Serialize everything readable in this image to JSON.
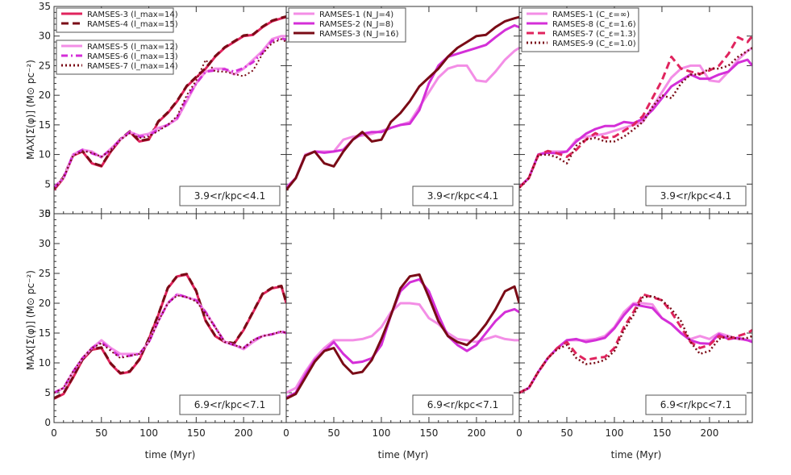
{
  "figure": {
    "ylabel": "MAX[Σ(φ)]  (M⊙ pc⁻²)",
    "xlabel": "time (Myr)",
    "ylim": [
      0,
      35
    ],
    "yticks": [
      0,
      5,
      10,
      15,
      20,
      25,
      30,
      35
    ],
    "xlim": [
      0,
      245
    ],
    "xticks": [
      0,
      50,
      100,
      150,
      200
    ]
  },
  "chart_data": [
    {
      "type": "line",
      "panel": "top-left",
      "region_label": "3.9<r/kpc<4.1",
      "legend_top": [
        {
          "name": "RAMSES-3 (l_max=14)",
          "color": "#e0245e",
          "dash": "solid"
        },
        {
          "name": "RAMSES-4 (l_max=15)",
          "color": "#7a0b16",
          "dash": "dashed"
        }
      ],
      "legend_bottom": [
        {
          "name": "RAMSES-5 (l_max=12)",
          "color": "#f38ee6",
          "dash": "solid"
        },
        {
          "name": "RAMSES-6 (l_max=13)",
          "color": "#d42fd8",
          "dash": "dashdot"
        },
        {
          "name": "RAMSES-7 (l_max=14)",
          "color": "#7a0b16",
          "dash": "dotted"
        }
      ],
      "x": [
        0,
        10,
        20,
        30,
        40,
        50,
        60,
        70,
        80,
        90,
        100,
        110,
        120,
        130,
        140,
        150,
        160,
        170,
        180,
        190,
        200,
        210,
        220,
        230,
        240,
        245
      ],
      "series": [
        {
          "name": "RAMSES-3 (l_max=14)",
          "color": "#e0245e",
          "dash": "solid",
          "width": 3,
          "values": [
            4,
            6,
            9.8,
            10.5,
            8.5,
            8,
            10.5,
            12.5,
            13.8,
            12.2,
            12.5,
            15.5,
            17,
            19,
            21.5,
            23,
            24.5,
            26.5,
            28,
            29,
            30,
            30.2,
            31.5,
            32.5,
            33,
            33.2
          ]
        },
        {
          "name": "RAMSES-4 (l_max=15)",
          "color": "#7a0b16",
          "dash": "dashed",
          "width": 3,
          "values": [
            4.2,
            6.2,
            9.9,
            10.6,
            8.6,
            8.1,
            10.6,
            12.6,
            13.9,
            12.3,
            12.6,
            15.6,
            17.1,
            19.1,
            21.6,
            23.1,
            24.6,
            26.6,
            28.1,
            29.1,
            30.1,
            30.3,
            31.6,
            32.6,
            33.1,
            33.3
          ]
        },
        {
          "name": "RAMSES-5 (l_max=12)",
          "color": "#f38ee6",
          "dash": "solid",
          "width": 3,
          "values": [
            4.5,
            6,
            10,
            10.8,
            10.5,
            9.5,
            11,
            12.5,
            13.8,
            13.2,
            13.5,
            14.5,
            15,
            16,
            19,
            22,
            24,
            24.5,
            24.5,
            23.5,
            24.5,
            26,
            27.5,
            29.5,
            30,
            30
          ]
        },
        {
          "name": "RAMSES-6 (l_max=13)",
          "color": "#d42fd8",
          "dash": "dashdot",
          "width": 3,
          "values": [
            4.4,
            6,
            9.9,
            10.8,
            10.2,
            9.6,
            10.8,
            12.6,
            13.8,
            13,
            13.2,
            14.2,
            15,
            16.2,
            19.5,
            22,
            24,
            24.2,
            24.4,
            24,
            24.6,
            25.6,
            27.2,
            29.2,
            29.6,
            29.4
          ]
        },
        {
          "name": "RAMSES-7 (l_max=14)",
          "color": "#7a0b16",
          "dash": "dotted",
          "width": 2,
          "values": [
            4.3,
            6,
            9.8,
            10.6,
            10.3,
            9.6,
            10.8,
            12.5,
            13.6,
            12.8,
            13,
            14,
            15,
            16.5,
            20,
            22.5,
            26,
            24,
            24,
            23.6,
            23.2,
            24.2,
            27,
            28.8,
            29.5,
            29
          ]
        }
      ]
    },
    {
      "type": "line",
      "panel": "top-middle",
      "region_label": "3.9<r/kpc<4.1",
      "legend_top": [
        {
          "name": "RAMSES-1 (N_J=4)",
          "color": "#f38ee6",
          "dash": "solid"
        },
        {
          "name": "RAMSES-2 (N_J=8)",
          "color": "#d42fd8",
          "dash": "solid"
        },
        {
          "name": "RAMSES-3 (N_J=16)",
          "color": "#7a0b16",
          "dash": "solid"
        }
      ],
      "legend_bottom": [],
      "x": [
        0,
        10,
        20,
        30,
        40,
        50,
        60,
        70,
        80,
        90,
        100,
        110,
        120,
        130,
        140,
        150,
        160,
        170,
        180,
        190,
        200,
        210,
        220,
        230,
        240,
        245
      ],
      "series": [
        {
          "name": "RAMSES-1 (N_J=4)",
          "color": "#f38ee6",
          "dash": "solid",
          "width": 3,
          "values": [
            4.5,
            6,
            10,
            10.5,
            10.5,
            10.5,
            12.5,
            13,
            13.2,
            13.5,
            14,
            14.5,
            15,
            15.5,
            18,
            20.5,
            23,
            24.5,
            25,
            25,
            22.5,
            22.3,
            24,
            26,
            27.5,
            28
          ]
        },
        {
          "name": "RAMSES-2 (N_J=8)",
          "color": "#d42fd8",
          "dash": "solid",
          "width": 3,
          "values": [
            4.3,
            6,
            9.8,
            10.5,
            10.3,
            10.5,
            10.8,
            12.5,
            13.5,
            13.8,
            13.8,
            14.5,
            15,
            15.2,
            17.5,
            22,
            25,
            26.5,
            27,
            27.5,
            28,
            28.5,
            29.8,
            31,
            31.8,
            31.5
          ]
        },
        {
          "name": "RAMSES-3 (N_J=16)",
          "color": "#7a0b16",
          "dash": "solid",
          "width": 3,
          "values": [
            4,
            6,
            9.8,
            10.5,
            8.5,
            8,
            10.5,
            12.5,
            13.8,
            12.2,
            12.5,
            15.5,
            17,
            19,
            21.5,
            23,
            24.5,
            26.5,
            28,
            29,
            30,
            30.2,
            31.5,
            32.5,
            33,
            33.2
          ]
        }
      ]
    },
    {
      "type": "line",
      "panel": "top-right",
      "region_label": "3.9<r/kpc<4.1",
      "legend_top": [
        {
          "name": "RAMSES-1 (C_ε=∞)",
          "color": "#f38ee6",
          "dash": "solid"
        },
        {
          "name": "RAMSES-8 (C_ε=1.6)",
          "color": "#d42fd8",
          "dash": "solid"
        },
        {
          "name": "RAMSES-7 (C_ε=1.3)",
          "color": "#e0245e",
          "dash": "dashed"
        },
        {
          "name": "RAMSES-9 (C_ε=1.0)",
          "color": "#7a0b16",
          "dash": "dotted"
        }
      ],
      "legend_bottom": [],
      "x": [
        0,
        10,
        20,
        30,
        40,
        50,
        60,
        70,
        80,
        90,
        100,
        110,
        120,
        130,
        140,
        150,
        160,
        170,
        180,
        190,
        200,
        210,
        220,
        230,
        240,
        245
      ],
      "series": [
        {
          "name": "RAMSES-1 (C_ε=∞)",
          "color": "#f38ee6",
          "dash": "solid",
          "width": 3,
          "values": [
            4.5,
            6,
            10,
            10.5,
            10.5,
            10.5,
            12.5,
            13,
            13.2,
            13.5,
            14,
            14.5,
            15,
            15.5,
            18,
            20.5,
            23,
            24.5,
            25,
            25,
            22.5,
            22.3,
            24,
            26,
            27.5,
            28
          ]
        },
        {
          "name": "RAMSES-8 (C_ε=1.6)",
          "color": "#d42fd8",
          "dash": "solid",
          "width": 3,
          "values": [
            4.5,
            6,
            10,
            10.3,
            10.2,
            10.5,
            12.2,
            13.5,
            14.3,
            14.8,
            14.8,
            15.5,
            15.3,
            16,
            17.5,
            19.5,
            21.5,
            22.5,
            23.5,
            22.8,
            22.8,
            23.5,
            24,
            25.5,
            26,
            25
          ]
        },
        {
          "name": "RAMSES-7 (C_ε=1.3)",
          "color": "#e0245e",
          "dash": "dashed",
          "width": 3,
          "values": [
            4.4,
            6,
            9.9,
            10.6,
            10.2,
            9.6,
            10.8,
            12.5,
            13.6,
            12.8,
            13,
            14,
            15,
            16.5,
            19.5,
            22.5,
            26.5,
            24.5,
            24,
            23.6,
            24.2,
            25,
            27,
            29.8,
            29,
            30
          ]
        },
        {
          "name": "RAMSES-9 (C_ε=1.0)",
          "color": "#7a0b16",
          "dash": "dotted",
          "width": 2.5,
          "values": [
            4.4,
            6,
            9.9,
            10,
            9.5,
            8.5,
            11.5,
            12.5,
            12.8,
            12.2,
            12.2,
            13,
            14.2,
            15.5,
            18,
            20,
            19.5,
            22,
            23.5,
            23.5,
            24.5,
            24.5,
            25,
            26.5,
            27.5,
            28
          ]
        }
      ]
    },
    {
      "type": "line",
      "panel": "bottom-left",
      "region_label": "6.9<r/kpc<7.1",
      "legend_top": [],
      "legend_bottom": [],
      "x": [
        0,
        10,
        20,
        30,
        40,
        50,
        60,
        70,
        80,
        90,
        100,
        110,
        120,
        130,
        140,
        150,
        160,
        170,
        180,
        190,
        200,
        210,
        220,
        230,
        240,
        245
      ],
      "series": [
        {
          "name": "RAMSES-3",
          "color": "#e0245e",
          "dash": "solid",
          "width": 3,
          "values": [
            4,
            4.8,
            7.5,
            10.5,
            12.2,
            12.5,
            9.8,
            8.2,
            8.5,
            10.5,
            14,
            18,
            22.5,
            24.5,
            24.8,
            22,
            17,
            14.5,
            13.5,
            13.2,
            15.5,
            18.5,
            21.5,
            22.5,
            22.8,
            20
          ]
        },
        {
          "name": "RAMSES-4",
          "color": "#7a0b16",
          "dash": "dashed",
          "width": 3,
          "values": [
            4.1,
            4.9,
            7.6,
            10.6,
            12.3,
            12.6,
            9.9,
            8.3,
            8.6,
            10.6,
            14.1,
            18.1,
            22.6,
            24.6,
            24.9,
            22.1,
            17.1,
            14.6,
            13.6,
            13.3,
            15.6,
            18.6,
            21.6,
            22.6,
            22.9,
            20.1
          ]
        },
        {
          "name": "RAMSES-5",
          "color": "#f38ee6",
          "dash": "solid",
          "width": 3,
          "values": [
            5,
            5.8,
            8.5,
            10.8,
            12.5,
            13.8,
            12.5,
            11.5,
            11.5,
            11.5,
            13.5,
            17,
            20,
            21.5,
            21,
            20.5,
            18.5,
            16,
            13.5,
            13,
            12.3,
            13.5,
            14.5,
            14.8,
            15.2,
            15
          ]
        },
        {
          "name": "RAMSES-6",
          "color": "#d42fd8",
          "dash": "dashdot",
          "width": 3,
          "values": [
            5,
            5.8,
            8.5,
            10.8,
            12.5,
            13.5,
            12.2,
            11,
            11.2,
            11.5,
            13.5,
            17,
            20,
            21.5,
            21,
            20.5,
            18.5,
            16,
            13.5,
            13,
            12.5,
            13.8,
            14.5,
            14.8,
            15.3,
            15
          ]
        },
        {
          "name": "RAMSES-7",
          "color": "#7a0b16",
          "dash": "dotted",
          "width": 2,
          "values": [
            5,
            5.8,
            8.5,
            10.8,
            12.5,
            13.3,
            12,
            10.8,
            11.2,
            11.5,
            13.5,
            17,
            20,
            21.3,
            21,
            20.3,
            18.3,
            16,
            13.5,
            13,
            12.5,
            13.8,
            14.5,
            14.8,
            15.3,
            15
          ]
        }
      ]
    },
    {
      "type": "line",
      "panel": "bottom-middle",
      "region_label": "6.9<r/kpc<7.1",
      "legend_top": [],
      "legend_bottom": [],
      "x": [
        0,
        10,
        20,
        30,
        40,
        50,
        60,
        70,
        80,
        90,
        100,
        110,
        120,
        130,
        140,
        150,
        160,
        170,
        180,
        190,
        200,
        210,
        220,
        230,
        240,
        245
      ],
      "series": [
        {
          "name": "RAMSES-1",
          "color": "#f38ee6",
          "dash": "solid",
          "width": 3,
          "values": [
            5,
            5.8,
            8.5,
            10.8,
            12.5,
            13.8,
            13.8,
            13.8,
            14,
            14.5,
            16,
            18.5,
            20,
            20,
            19.8,
            17.5,
            16.5,
            15,
            14,
            13.8,
            13.5,
            14,
            14.5,
            14,
            13.8,
            13.8
          ]
        },
        {
          "name": "RAMSES-2",
          "color": "#d42fd8",
          "dash": "solid",
          "width": 3,
          "values": [
            4.2,
            5,
            8,
            10.5,
            12,
            13.5,
            11.5,
            10,
            10.2,
            10.8,
            13,
            18,
            22,
            23.5,
            24,
            22,
            18,
            14.5,
            13,
            12,
            13,
            15,
            17,
            18.5,
            19,
            18.5
          ]
        },
        {
          "name": "RAMSES-3",
          "color": "#7a0b16",
          "dash": "solid",
          "width": 3,
          "values": [
            4,
            4.8,
            7.5,
            10.2,
            12,
            12.5,
            9.8,
            8.2,
            8.5,
            10.5,
            14,
            18,
            22.5,
            24.5,
            24.8,
            21,
            17,
            14.5,
            13.5,
            13,
            14.5,
            16.5,
            19,
            22,
            22.8,
            20
          ]
        }
      ]
    },
    {
      "type": "line",
      "panel": "bottom-right",
      "region_label": "6.9<r/kpc<7.1",
      "legend_top": [],
      "legend_bottom": [],
      "x": [
        0,
        10,
        20,
        30,
        40,
        50,
        60,
        70,
        80,
        90,
        100,
        110,
        120,
        130,
        140,
        150,
        160,
        170,
        180,
        190,
        200,
        210,
        220,
        230,
        240,
        245
      ],
      "series": [
        {
          "name": "RAMSES-1",
          "color": "#f38ee6",
          "dash": "solid",
          "width": 3,
          "values": [
            5,
            5.8,
            8.5,
            10.8,
            12.5,
            13.8,
            13.8,
            13.8,
            14,
            14.5,
            16,
            18.5,
            20,
            20,
            19.8,
            17.5,
            16.5,
            15,
            14,
            14.5,
            14,
            15,
            14.5,
            14,
            13.8,
            13.8
          ]
        },
        {
          "name": "RAMSES-8",
          "color": "#d42fd8",
          "dash": "solid",
          "width": 3,
          "values": [
            5,
            5.8,
            8.5,
            10.8,
            12.5,
            13.8,
            14,
            13.5,
            13.8,
            14.2,
            15.8,
            18,
            19.8,
            19.5,
            19.2,
            17.5,
            16.5,
            15,
            13.8,
            13.3,
            13.2,
            14.8,
            14,
            14.2,
            13.8,
            13.5
          ]
        },
        {
          "name": "RAMSES-7",
          "color": "#e0245e",
          "dash": "dashed",
          "width": 3,
          "values": [
            5,
            5.8,
            8.5,
            10.8,
            12.5,
            13.5,
            11.5,
            10.5,
            10.8,
            11,
            12.5,
            16,
            18.5,
            21.5,
            21,
            20.5,
            18.5,
            16,
            13.5,
            12.5,
            13,
            14.5,
            14,
            14.5,
            15,
            15.5
          ]
        },
        {
          "name": "RAMSES-9",
          "color": "#7a0b16",
          "dash": "dotted",
          "width": 2.5,
          "values": [
            5,
            5.8,
            8.5,
            10.8,
            12.3,
            13,
            10.8,
            9.8,
            10,
            10.5,
            12,
            15.5,
            18,
            21,
            21.2,
            20.5,
            19,
            17,
            13.5,
            11.5,
            12,
            14,
            14.5,
            14,
            14.2,
            14.5
          ]
        }
      ]
    }
  ]
}
